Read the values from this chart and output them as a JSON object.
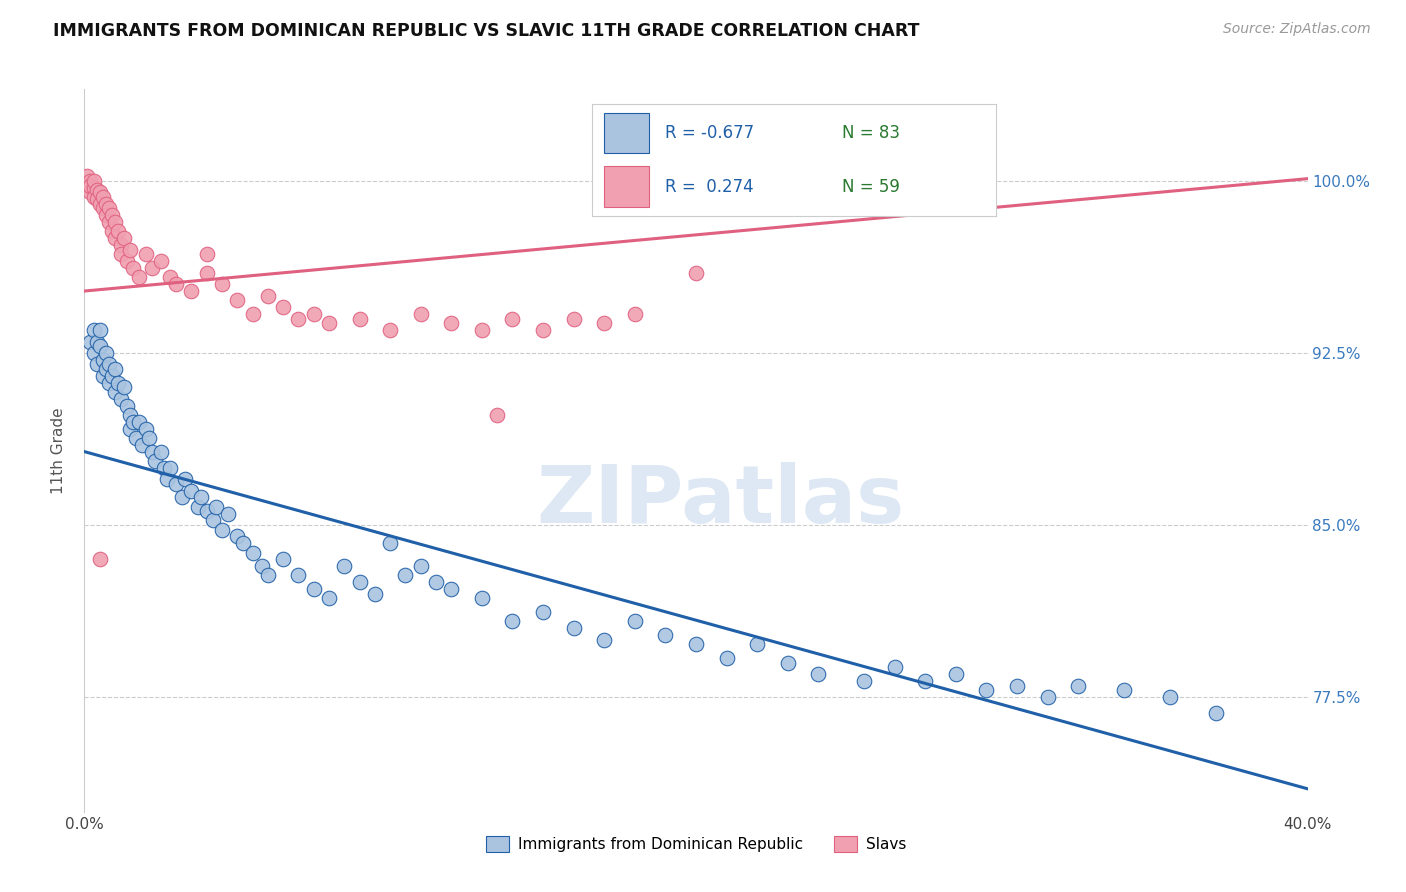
{
  "title": "IMMIGRANTS FROM DOMINICAN REPUBLIC VS SLAVIC 11TH GRADE CORRELATION CHART",
  "source": "Source: ZipAtlas.com",
  "ylabel": "11th Grade",
  "yticks": [
    "100.0%",
    "92.5%",
    "85.0%",
    "77.5%"
  ],
  "ytick_vals": [
    1.0,
    0.925,
    0.85,
    0.775
  ],
  "xlim": [
    0.0,
    0.4
  ],
  "ylim": [
    0.725,
    1.04
  ],
  "legend_blue_r": "-0.677",
  "legend_blue_n": "83",
  "legend_pink_r": "0.274",
  "legend_pink_n": "59",
  "legend_blue_label": "Immigrants from Dominican Republic",
  "legend_pink_label": "Slavs",
  "blue_color": "#aac4e0",
  "pink_color": "#f0a0b0",
  "blue_line_color": "#2060a8",
  "pink_line_color": "#e06080",
  "blue_line": [
    [
      0.0,
      0.882
    ],
    [
      0.4,
      0.735
    ]
  ],
  "pink_line": [
    [
      0.0,
      0.952
    ],
    [
      0.4,
      1.001
    ]
  ],
  "blue_scatter": [
    [
      0.002,
      0.93
    ],
    [
      0.003,
      0.935
    ],
    [
      0.003,
      0.925
    ],
    [
      0.004,
      0.93
    ],
    [
      0.004,
      0.92
    ],
    [
      0.005,
      0.928
    ],
    [
      0.005,
      0.935
    ],
    [
      0.006,
      0.922
    ],
    [
      0.006,
      0.915
    ],
    [
      0.007,
      0.925
    ],
    [
      0.007,
      0.918
    ],
    [
      0.008,
      0.912
    ],
    [
      0.008,
      0.92
    ],
    [
      0.009,
      0.915
    ],
    [
      0.01,
      0.908
    ],
    [
      0.01,
      0.918
    ],
    [
      0.011,
      0.912
    ],
    [
      0.012,
      0.905
    ],
    [
      0.013,
      0.91
    ],
    [
      0.014,
      0.902
    ],
    [
      0.015,
      0.898
    ],
    [
      0.015,
      0.892
    ],
    [
      0.016,
      0.895
    ],
    [
      0.017,
      0.888
    ],
    [
      0.018,
      0.895
    ],
    [
      0.019,
      0.885
    ],
    [
      0.02,
      0.892
    ],
    [
      0.021,
      0.888
    ],
    [
      0.022,
      0.882
    ],
    [
      0.023,
      0.878
    ],
    [
      0.025,
      0.882
    ],
    [
      0.026,
      0.875
    ],
    [
      0.027,
      0.87
    ],
    [
      0.028,
      0.875
    ],
    [
      0.03,
      0.868
    ],
    [
      0.032,
      0.862
    ],
    [
      0.033,
      0.87
    ],
    [
      0.035,
      0.865
    ],
    [
      0.037,
      0.858
    ],
    [
      0.038,
      0.862
    ],
    [
      0.04,
      0.856
    ],
    [
      0.042,
      0.852
    ],
    [
      0.043,
      0.858
    ],
    [
      0.045,
      0.848
    ],
    [
      0.047,
      0.855
    ],
    [
      0.05,
      0.845
    ],
    [
      0.052,
      0.842
    ],
    [
      0.055,
      0.838
    ],
    [
      0.058,
      0.832
    ],
    [
      0.06,
      0.828
    ],
    [
      0.065,
      0.835
    ],
    [
      0.07,
      0.828
    ],
    [
      0.075,
      0.822
    ],
    [
      0.08,
      0.818
    ],
    [
      0.085,
      0.832
    ],
    [
      0.09,
      0.825
    ],
    [
      0.095,
      0.82
    ],
    [
      0.1,
      0.842
    ],
    [
      0.105,
      0.828
    ],
    [
      0.11,
      0.832
    ],
    [
      0.115,
      0.825
    ],
    [
      0.12,
      0.822
    ],
    [
      0.13,
      0.818
    ],
    [
      0.14,
      0.808
    ],
    [
      0.15,
      0.812
    ],
    [
      0.16,
      0.805
    ],
    [
      0.17,
      0.8
    ],
    [
      0.18,
      0.808
    ],
    [
      0.19,
      0.802
    ],
    [
      0.2,
      0.798
    ],
    [
      0.21,
      0.792
    ],
    [
      0.22,
      0.798
    ],
    [
      0.23,
      0.79
    ],
    [
      0.24,
      0.785
    ],
    [
      0.255,
      0.782
    ],
    [
      0.265,
      0.788
    ],
    [
      0.275,
      0.782
    ],
    [
      0.285,
      0.785
    ],
    [
      0.295,
      0.778
    ],
    [
      0.305,
      0.78
    ],
    [
      0.315,
      0.775
    ],
    [
      0.325,
      0.78
    ],
    [
      0.34,
      0.778
    ],
    [
      0.355,
      0.775
    ],
    [
      0.37,
      0.768
    ]
  ],
  "pink_scatter": [
    [
      0.001,
      1.002
    ],
    [
      0.001,
      0.998
    ],
    [
      0.002,
      1.0
    ],
    [
      0.002,
      0.995
    ],
    [
      0.002,
      0.998
    ],
    [
      0.003,
      0.997
    ],
    [
      0.003,
      0.993
    ],
    [
      0.003,
      1.0
    ],
    [
      0.004,
      0.996
    ],
    [
      0.004,
      0.992
    ],
    [
      0.005,
      0.995
    ],
    [
      0.005,
      0.99
    ],
    [
      0.006,
      0.993
    ],
    [
      0.006,
      0.988
    ],
    [
      0.007,
      0.99
    ],
    [
      0.007,
      0.985
    ],
    [
      0.008,
      0.988
    ],
    [
      0.008,
      0.982
    ],
    [
      0.009,
      0.985
    ],
    [
      0.009,
      0.978
    ],
    [
      0.01,
      0.982
    ],
    [
      0.01,
      0.975
    ],
    [
      0.011,
      0.978
    ],
    [
      0.012,
      0.972
    ],
    [
      0.012,
      0.968
    ],
    [
      0.013,
      0.975
    ],
    [
      0.014,
      0.965
    ],
    [
      0.015,
      0.97
    ],
    [
      0.016,
      0.962
    ],
    [
      0.018,
      0.958
    ],
    [
      0.02,
      0.968
    ],
    [
      0.022,
      0.962
    ],
    [
      0.025,
      0.965
    ],
    [
      0.028,
      0.958
    ],
    [
      0.03,
      0.955
    ],
    [
      0.035,
      0.952
    ],
    [
      0.04,
      0.96
    ],
    [
      0.045,
      0.955
    ],
    [
      0.05,
      0.948
    ],
    [
      0.055,
      0.942
    ],
    [
      0.06,
      0.95
    ],
    [
      0.065,
      0.945
    ],
    [
      0.07,
      0.94
    ],
    [
      0.075,
      0.942
    ],
    [
      0.08,
      0.938
    ],
    [
      0.09,
      0.94
    ],
    [
      0.1,
      0.935
    ],
    [
      0.11,
      0.942
    ],
    [
      0.12,
      0.938
    ],
    [
      0.13,
      0.935
    ],
    [
      0.14,
      0.94
    ],
    [
      0.15,
      0.935
    ],
    [
      0.16,
      0.94
    ],
    [
      0.17,
      0.938
    ],
    [
      0.18,
      0.942
    ],
    [
      0.2,
      0.96
    ],
    [
      0.005,
      0.835
    ],
    [
      0.04,
      0.968
    ],
    [
      0.135,
      0.898
    ]
  ],
  "watermark": "ZIPatlas",
  "watermark_color": "#dde8f4",
  "background_color": "#ffffff",
  "grid_color": "#cccccc"
}
